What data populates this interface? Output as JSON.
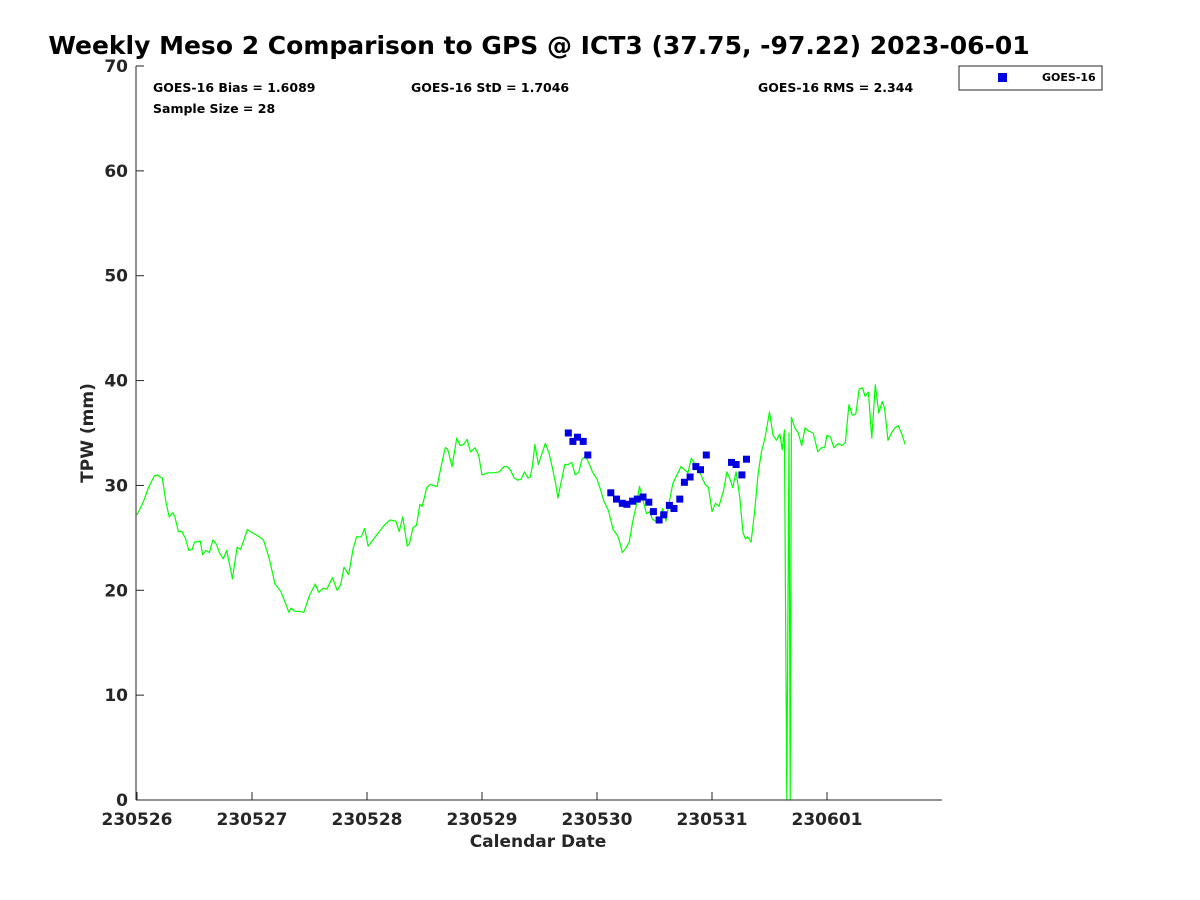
{
  "chart_data": {
    "type": "line",
    "title": "Weekly Meso 2 Comparison to GPS @ ICT3 (37.75, -97.22) 2023-06-01",
    "xlabel": "Calendar Date",
    "ylabel": "TPW (mm)",
    "x_axis": {
      "range": [
        0,
        7
      ],
      "ticks": [
        0,
        1,
        2,
        3,
        4,
        5,
        6
      ],
      "tick_labels": [
        "230526",
        "230527",
        "230528",
        "230529",
        "230530",
        "230531",
        "230601"
      ]
    },
    "y_axis": {
      "range": [
        0,
        70
      ],
      "ticks": [
        0,
        10,
        20,
        30,
        40,
        50,
        60,
        70
      ],
      "tick_labels": [
        "0",
        "10",
        "20",
        "30",
        "40",
        "50",
        "60",
        "70"
      ]
    },
    "grid": false,
    "legend": {
      "placement": "top-right",
      "entries": [
        "GOES-16"
      ]
    },
    "stats": {
      "bias": "GOES-16 Bias = 1.6089",
      "std": "GOES-16 StD = 1.7046",
      "rms": "GOES-16 RMS = 2.344",
      "sample": "Sample Size = 28"
    },
    "series": [
      {
        "name": "GPS",
        "kind": "line",
        "color": "#00ff00",
        "points": [
          [
            0.0,
            27.2
          ],
          [
            0.05,
            28.3
          ],
          [
            0.1,
            29.8
          ],
          [
            0.15,
            30.9
          ],
          [
            0.18,
            31.0
          ],
          [
            0.2,
            30.8
          ],
          [
            0.22,
            30.7
          ],
          [
            0.25,
            28.5
          ],
          [
            0.28,
            27.0
          ],
          [
            0.31,
            27.4
          ],
          [
            0.33,
            27.0
          ],
          [
            0.36,
            25.6
          ],
          [
            0.39,
            25.6
          ],
          [
            0.42,
            25.0
          ],
          [
            0.45,
            23.8
          ],
          [
            0.48,
            23.9
          ],
          [
            0.5,
            24.6
          ],
          [
            0.55,
            24.7
          ],
          [
            0.57,
            23.4
          ],
          [
            0.6,
            23.8
          ],
          [
            0.63,
            23.6
          ],
          [
            0.66,
            24.8
          ],
          [
            0.69,
            24.4
          ],
          [
            0.72,
            23.5
          ],
          [
            0.75,
            23.0
          ],
          [
            0.78,
            23.8
          ],
          [
            0.83,
            21.1
          ],
          [
            0.87,
            24.1
          ],
          [
            0.9,
            23.9
          ],
          [
            0.93,
            24.8
          ],
          [
            0.96,
            25.8
          ],
          [
            1.0,
            25.5
          ],
          [
            1.05,
            25.2
          ],
          [
            1.1,
            24.8
          ],
          [
            1.15,
            23.0
          ],
          [
            1.2,
            20.6
          ],
          [
            1.25,
            19.9
          ],
          [
            1.3,
            18.5
          ],
          [
            1.32,
            17.9
          ],
          [
            1.34,
            18.3
          ],
          [
            1.37,
            18.0
          ],
          [
            1.41,
            18.0
          ],
          [
            1.45,
            17.9
          ],
          [
            1.5,
            19.5
          ],
          [
            1.55,
            20.6
          ],
          [
            1.58,
            19.8
          ],
          [
            1.62,
            20.2
          ],
          [
            1.65,
            20.1
          ],
          [
            1.7,
            21.2
          ],
          [
            1.74,
            20.0
          ],
          [
            1.77,
            20.5
          ],
          [
            1.8,
            22.2
          ],
          [
            1.84,
            21.5
          ],
          [
            1.88,
            24.0
          ],
          [
            1.91,
            25.1
          ],
          [
            1.95,
            25.1
          ],
          [
            1.98,
            25.9
          ],
          [
            2.01,
            24.2
          ],
          [
            2.05,
            24.8
          ],
          [
            2.1,
            25.5
          ],
          [
            2.15,
            26.2
          ],
          [
            2.2,
            26.7
          ],
          [
            2.25,
            26.6
          ],
          [
            2.28,
            25.6
          ],
          [
            2.31,
            27.0
          ],
          [
            2.35,
            24.2
          ],
          [
            2.37,
            24.5
          ],
          [
            2.4,
            26.0
          ],
          [
            2.43,
            26.2
          ],
          [
            2.46,
            28.2
          ],
          [
            2.48,
            28.0
          ],
          [
            2.52,
            29.8
          ],
          [
            2.55,
            30.1
          ],
          [
            2.58,
            30.0
          ],
          [
            2.61,
            29.9
          ],
          [
            2.64,
            31.6
          ],
          [
            2.68,
            33.6
          ],
          [
            2.7,
            33.5
          ],
          [
            2.74,
            31.8
          ],
          [
            2.78,
            34.5
          ],
          [
            2.81,
            33.8
          ],
          [
            2.84,
            33.9
          ],
          [
            2.87,
            34.4
          ],
          [
            2.9,
            33.2
          ],
          [
            2.94,
            33.6
          ],
          [
            2.97,
            32.9
          ],
          [
            3.0,
            31.0
          ],
          [
            3.05,
            31.2
          ],
          [
            3.1,
            31.2
          ],
          [
            3.15,
            31.3
          ],
          [
            3.19,
            31.8
          ],
          [
            3.22,
            31.8
          ],
          [
            3.25,
            31.4
          ],
          [
            3.28,
            30.7
          ],
          [
            3.31,
            30.5
          ],
          [
            3.34,
            30.6
          ],
          [
            3.37,
            31.3
          ],
          [
            3.4,
            30.7
          ],
          [
            3.42,
            30.8
          ],
          [
            3.44,
            32.0
          ],
          [
            3.46,
            33.9
          ],
          [
            3.49,
            32.0
          ],
          [
            3.52,
            33.0
          ],
          [
            3.55,
            34.0
          ],
          [
            3.58,
            33.2
          ],
          [
            3.61,
            31.8
          ],
          [
            3.64,
            30.2
          ],
          [
            3.66,
            28.8
          ],
          [
            3.69,
            30.4
          ],
          [
            3.72,
            32.0
          ],
          [
            3.75,
            32.0
          ],
          [
            3.78,
            32.2
          ],
          [
            3.81,
            31.0
          ],
          [
            3.84,
            31.2
          ],
          [
            3.87,
            32.5
          ],
          [
            3.9,
            32.8
          ],
          [
            3.93,
            32.1
          ],
          [
            3.96,
            31.3
          ],
          [
            4.0,
            30.6
          ],
          [
            4.03,
            29.6
          ],
          [
            4.06,
            28.5
          ],
          [
            4.1,
            27.6
          ],
          [
            4.14,
            25.8
          ],
          [
            4.18,
            25.2
          ],
          [
            4.2,
            24.5
          ],
          [
            4.22,
            23.6
          ],
          [
            4.25,
            24.0
          ],
          [
            4.28,
            24.6
          ],
          [
            4.31,
            26.5
          ],
          [
            4.34,
            28.0
          ],
          [
            4.37,
            29.9
          ],
          [
            4.4,
            28.6
          ],
          [
            4.43,
            27.3
          ],
          [
            4.46,
            27.5
          ],
          [
            4.48,
            26.8
          ],
          [
            4.51,
            26.6
          ],
          [
            4.54,
            26.5
          ],
          [
            4.57,
            27.8
          ],
          [
            4.6,
            26.6
          ],
          [
            4.63,
            28.5
          ],
          [
            4.66,
            30.2
          ],
          [
            4.7,
            31.1
          ],
          [
            4.73,
            31.8
          ],
          [
            4.76,
            31.5
          ],
          [
            4.79,
            31.2
          ],
          [
            4.82,
            32.6
          ],
          [
            4.86,
            31.9
          ],
          [
            4.9,
            31.1
          ],
          [
            4.94,
            30.1
          ],
          [
            4.97,
            29.8
          ],
          [
            5.0,
            27.5
          ],
          [
            5.03,
            28.3
          ],
          [
            5.06,
            28.0
          ],
          [
            5.1,
            29.5
          ],
          [
            5.13,
            31.3
          ],
          [
            5.16,
            30.5
          ],
          [
            5.18,
            29.8
          ],
          [
            5.21,
            31.3
          ],
          [
            5.24,
            29.0
          ],
          [
            5.27,
            25.5
          ],
          [
            5.29,
            24.9
          ],
          [
            5.31,
            25.1
          ],
          [
            5.34,
            24.6
          ],
          [
            5.37,
            27.5
          ],
          [
            5.4,
            31.0
          ],
          [
            5.43,
            33.2
          ],
          [
            5.46,
            34.5
          ],
          [
            5.5,
            37.0
          ],
          [
            5.53,
            34.8
          ],
          [
            5.56,
            34.3
          ],
          [
            5.59,
            34.9
          ],
          [
            5.61,
            33.4
          ],
          [
            5.63,
            35.3
          ],
          [
            5.65,
            0.0
          ],
          [
            5.67,
            35.0
          ],
          [
            5.68,
            0.0
          ],
          [
            5.69,
            36.5
          ],
          [
            5.72,
            35.5
          ],
          [
            5.75,
            35.0
          ],
          [
            5.78,
            33.8
          ],
          [
            5.81,
            35.5
          ],
          [
            5.84,
            35.2
          ],
          [
            5.88,
            35.0
          ],
          [
            5.92,
            33.2
          ],
          [
            5.95,
            33.6
          ],
          [
            5.98,
            33.6
          ],
          [
            6.0,
            34.8
          ],
          [
            6.03,
            34.6
          ],
          [
            6.06,
            33.6
          ],
          [
            6.1,
            34.0
          ],
          [
            6.13,
            33.8
          ],
          [
            6.16,
            34.1
          ],
          [
            6.19,
            37.7
          ],
          [
            6.22,
            36.7
          ],
          [
            6.25,
            36.8
          ],
          [
            6.28,
            39.2
          ],
          [
            6.31,
            39.3
          ],
          [
            6.33,
            38.5
          ],
          [
            6.36,
            38.9
          ],
          [
            6.39,
            34.5
          ],
          [
            6.42,
            39.6
          ],
          [
            6.45,
            36.9
          ],
          [
            6.48,
            38.0
          ],
          [
            6.5,
            37.4
          ],
          [
            6.53,
            34.3
          ],
          [
            6.56,
            35.0
          ],
          [
            6.59,
            35.5
          ],
          [
            6.62,
            35.7
          ],
          [
            6.65,
            34.9
          ],
          [
            6.68,
            33.9
          ]
        ]
      },
      {
        "name": "GOES-16",
        "kind": "scatter",
        "color": "#0000e0",
        "points": [
          [
            3.75,
            35.0
          ],
          [
            3.79,
            34.2
          ],
          [
            3.83,
            34.6
          ],
          [
            3.88,
            34.2
          ],
          [
            3.92,
            32.9
          ],
          [
            4.12,
            29.3
          ],
          [
            4.17,
            28.7
          ],
          [
            4.22,
            28.3
          ],
          [
            4.26,
            28.2
          ],
          [
            4.31,
            28.5
          ],
          [
            4.35,
            28.7
          ],
          [
            4.4,
            28.9
          ],
          [
            4.45,
            28.4
          ],
          [
            4.49,
            27.5
          ],
          [
            4.54,
            26.7
          ],
          [
            4.58,
            27.2
          ],
          [
            4.63,
            28.1
          ],
          [
            4.67,
            27.8
          ],
          [
            4.72,
            28.7
          ],
          [
            4.76,
            30.3
          ],
          [
            4.81,
            30.8
          ],
          [
            4.86,
            31.8
          ],
          [
            4.9,
            31.5
          ],
          [
            4.95,
            32.9
          ],
          [
            5.17,
            32.2
          ],
          [
            5.21,
            32.0
          ],
          [
            5.26,
            31.0
          ],
          [
            5.3,
            32.5
          ]
        ]
      }
    ]
  }
}
